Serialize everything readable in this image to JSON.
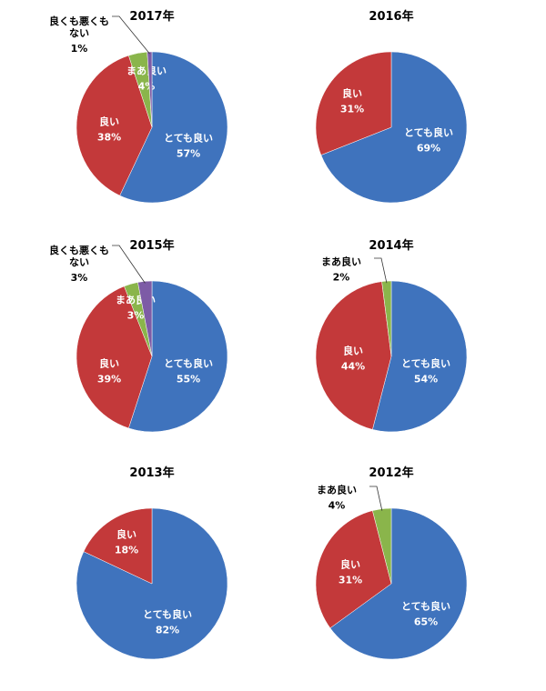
{
  "colors": {
    "とても良い": "#3f73bd",
    "良い": "#c3393a",
    "まあ良い": "#8ab54b",
    "良くも悪くもない": "#7d5ba6"
  },
  "chart_data": [
    {
      "type": "pie",
      "title": "2017年",
      "slices": [
        {
          "label": "とても良い",
          "value": 57,
          "pct": "57%"
        },
        {
          "label": "良い",
          "value": 38,
          "pct": "38%"
        },
        {
          "label": "まあ良い",
          "value": 4,
          "pct": "4%"
        },
        {
          "label": "良くも悪くもない",
          "value": 1,
          "pct": "1%",
          "label_lines": [
            "良くも悪くも",
            "ない"
          ]
        }
      ]
    },
    {
      "type": "pie",
      "title": "2016年",
      "slices": [
        {
          "label": "とても良い",
          "value": 69,
          "pct": "69%"
        },
        {
          "label": "良い",
          "value": 31,
          "pct": "31%"
        }
      ]
    },
    {
      "type": "pie",
      "title": "2015年",
      "slices": [
        {
          "label": "とても良い",
          "value": 55,
          "pct": "55%"
        },
        {
          "label": "良い",
          "value": 39,
          "pct": "39%"
        },
        {
          "label": "まあ良い",
          "value": 3,
          "pct": "3%"
        },
        {
          "label": "良くも悪くもない",
          "value": 3,
          "pct": "3%",
          "label_lines": [
            "良くも悪くも",
            "ない"
          ]
        }
      ]
    },
    {
      "type": "pie",
      "title": "2014年",
      "slices": [
        {
          "label": "とても良い",
          "value": 54,
          "pct": "54%"
        },
        {
          "label": "良い",
          "value": 44,
          "pct": "44%"
        },
        {
          "label": "まあ良い",
          "value": 2,
          "pct": "2%"
        }
      ]
    },
    {
      "type": "pie",
      "title": "2013年",
      "slices": [
        {
          "label": "とても良い",
          "value": 82,
          "pct": "82%"
        },
        {
          "label": "良い",
          "value": 18,
          "pct": "18%"
        }
      ]
    },
    {
      "type": "pie",
      "title": "2012年",
      "slices": [
        {
          "label": "とても良い",
          "value": 65,
          "pct": "65%"
        },
        {
          "label": "良い",
          "value": 31,
          "pct": "31%"
        },
        {
          "label": "まあ良い",
          "value": 4,
          "pct": "4%"
        }
      ]
    }
  ]
}
